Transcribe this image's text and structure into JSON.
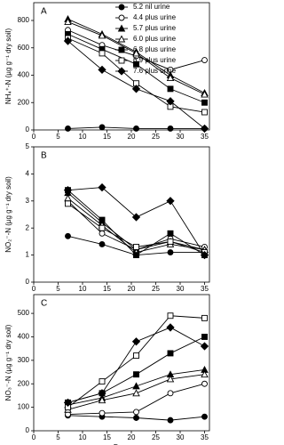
{
  "chart_data": [
    {
      "type": "line",
      "panel_label": "A",
      "ylabel": "NH₄⁺-N (µg g⁻¹ dry soil)",
      "x": [
        7,
        14,
        21,
        28,
        35
      ],
      "xlim": [
        0,
        36
      ],
      "xticks": [
        0,
        5,
        10,
        15,
        20,
        25,
        30,
        35
      ],
      "ylim": [
        0,
        930
      ],
      "yticks": [
        0,
        200,
        400,
        600,
        800
      ],
      "legend": "upper right",
      "series": [
        {
          "name": "5.2 nil urine",
          "color": "#000000",
          "marker": "circle",
          "filled": true,
          "values": [
            10,
            20,
            10,
            10,
            10
          ]
        },
        {
          "name": "4.4 plus urine",
          "color": "#000000",
          "marker": "circle",
          "filled": false,
          "values": [
            730,
            620,
            540,
            440,
            510
          ]
        },
        {
          "name": "5.7 plus urine",
          "color": "#000000",
          "marker": "triangle",
          "filled": true,
          "values": [
            810,
            700,
            570,
            400,
            270
          ]
        },
        {
          "name": "6.0 plus urine",
          "color": "#000000",
          "marker": "triangle",
          "filled": false,
          "values": [
            790,
            690,
            560,
            380,
            260
          ]
        },
        {
          "name": "6.8 plus urine",
          "color": "#000000",
          "marker": "square",
          "filled": true,
          "values": [
            700,
            590,
            480,
            300,
            200
          ]
        },
        {
          "name": "6.9 plus urine",
          "color": "#000000",
          "marker": "square",
          "filled": false,
          "values": [
            670,
            560,
            340,
            170,
            130
          ]
        },
        {
          "name": "7.6 plus urine",
          "color": "#000000",
          "marker": "diamond",
          "filled": true,
          "values": [
            650,
            440,
            300,
            210,
            10
          ]
        }
      ]
    },
    {
      "type": "line",
      "panel_label": "B",
      "ylabel": "NO₂⁻-N (µg g⁻¹ dry soil)",
      "x": [
        7,
        14,
        21,
        28,
        35
      ],
      "xlim": [
        0,
        36
      ],
      "xticks": [
        0,
        5,
        10,
        15,
        20,
        25,
        30,
        35
      ],
      "ylim": [
        0,
        5
      ],
      "yticks": [
        0,
        1,
        2,
        3,
        4,
        5
      ],
      "series": [
        {
          "color": "#000000",
          "marker": "circle",
          "filled": true,
          "values": [
            1.7,
            1.4,
            1.0,
            1.1,
            1.1
          ]
        },
        {
          "color": "#000000",
          "marker": "circle",
          "filled": false,
          "values": [
            3.0,
            1.8,
            1.2,
            1.6,
            1.3
          ]
        },
        {
          "color": "#000000",
          "marker": "triangle",
          "filled": true,
          "values": [
            3.3,
            2.2,
            1.2,
            1.5,
            1.2
          ]
        },
        {
          "color": "#000000",
          "marker": "triangle",
          "filled": false,
          "values": [
            3.1,
            2.1,
            1.1,
            1.4,
            1.2
          ]
        },
        {
          "color": "#000000",
          "marker": "square",
          "filled": true,
          "values": [
            3.4,
            2.3,
            1.0,
            1.8,
            1.0
          ]
        },
        {
          "color": "#000000",
          "marker": "square",
          "filled": false,
          "values": [
            2.9,
            2.0,
            1.3,
            1.5,
            1.1
          ]
        },
        {
          "color": "#000000",
          "marker": "diamond",
          "filled": true,
          "values": [
            3.4,
            3.5,
            2.4,
            3.0,
            1.0
          ]
        }
      ]
    },
    {
      "type": "line",
      "panel_label": "C",
      "ylabel": "NO₃⁻-N (µg g⁻¹ dry soil)",
      "xlabel": "Days",
      "x": [
        7,
        14,
        21,
        28,
        35
      ],
      "xlim": [
        0,
        36
      ],
      "xticks": [
        0,
        5,
        10,
        15,
        20,
        25,
        30,
        35
      ],
      "ylim": [
        0,
        580
      ],
      "yticks": [
        0,
        100,
        200,
        300,
        400,
        500
      ],
      "series": [
        {
          "color": "#000000",
          "marker": "circle",
          "filled": true,
          "values": [
            65,
            60,
            55,
            45,
            60
          ]
        },
        {
          "color": "#000000",
          "marker": "circle",
          "filled": false,
          "values": [
            70,
            75,
            80,
            160,
            200
          ]
        },
        {
          "color": "#000000",
          "marker": "triangle",
          "filled": true,
          "values": [
            110,
            140,
            190,
            240,
            260
          ]
        },
        {
          "color": "#000000",
          "marker": "triangle",
          "filled": false,
          "values": [
            90,
            130,
            160,
            220,
            240
          ]
        },
        {
          "color": "#000000",
          "marker": "square",
          "filled": true,
          "values": [
            120,
            160,
            240,
            330,
            400
          ]
        },
        {
          "color": "#000000",
          "marker": "square",
          "filled": false,
          "values": [
            100,
            210,
            320,
            490,
            480
          ]
        },
        {
          "color": "#000000",
          "marker": "diamond",
          "filled": true,
          "values": [
            120,
            160,
            380,
            440,
            360
          ]
        }
      ]
    }
  ]
}
